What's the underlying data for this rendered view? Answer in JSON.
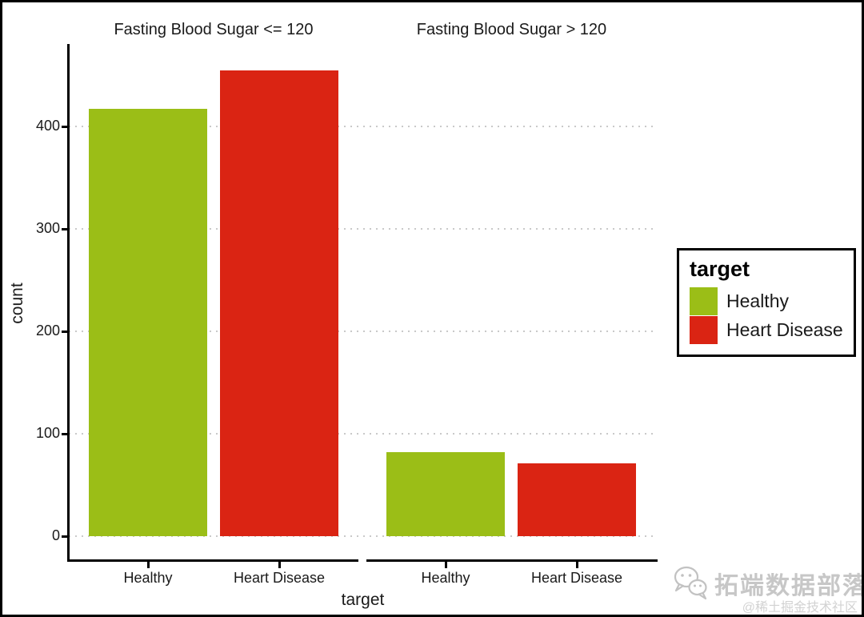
{
  "chart_data": {
    "type": "bar",
    "faceted": true,
    "facets": [
      {
        "label": "Fasting Blood Sugar <= 120",
        "categories": [
          "Healthy",
          "Heart Disease"
        ],
        "values": [
          417,
          455
        ]
      },
      {
        "label": "Fasting Blood Sugar > 120",
        "categories": [
          "Healthy",
          "Heart Disease"
        ],
        "values": [
          82,
          71
        ]
      }
    ],
    "series_colors": {
      "Healthy": "#9bbe17",
      "Heart Disease": "#da2413"
    },
    "xlabel": "target",
    "ylabel": "count",
    "y_ticks": [
      0,
      100,
      200,
      300,
      400
    ],
    "ylim": [
      0,
      478
    ],
    "grid": "horizontal-dotted",
    "legend": {
      "position": "right",
      "title": "target",
      "entries": [
        {
          "label": "Healthy",
          "color": "#9bbe17"
        },
        {
          "label": "Heart Disease",
          "color": "#da2413"
        }
      ]
    }
  },
  "watermark": {
    "logo": "wechat-icon",
    "brand": "拓端数据部落",
    "credit": "@稀土掘金技术社区"
  },
  "colors": {
    "bar_healthy": "#9bbe17",
    "bar_heart_disease": "#da2413",
    "gridline": "#c9c9c9",
    "axis": "#000000",
    "text": "#1a1a1a",
    "watermark_gray": "#c7c7c7"
  }
}
